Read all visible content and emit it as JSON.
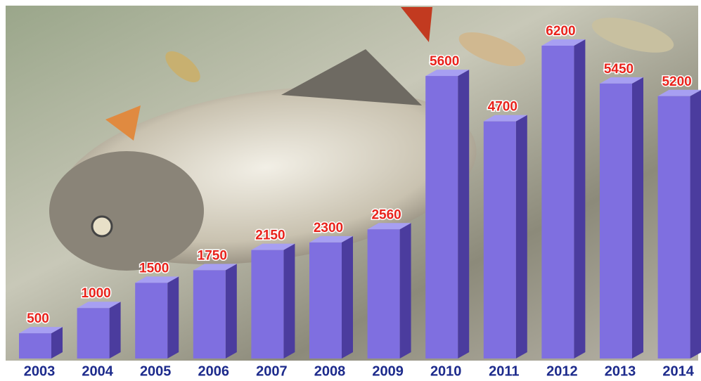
{
  "chart_data": {
    "type": "bar3d",
    "categories": [
      "2003",
      "2004",
      "2005",
      "2006",
      "2007",
      "2008",
      "2009",
      "2010",
      "2011",
      "2012",
      "2013",
      "2014"
    ],
    "values": [
      500,
      1000,
      1500,
      1750,
      2150,
      2300,
      2560,
      5600,
      4700,
      6200,
      5450,
      5200
    ],
    "color": "#7f6fe0"
  }
}
